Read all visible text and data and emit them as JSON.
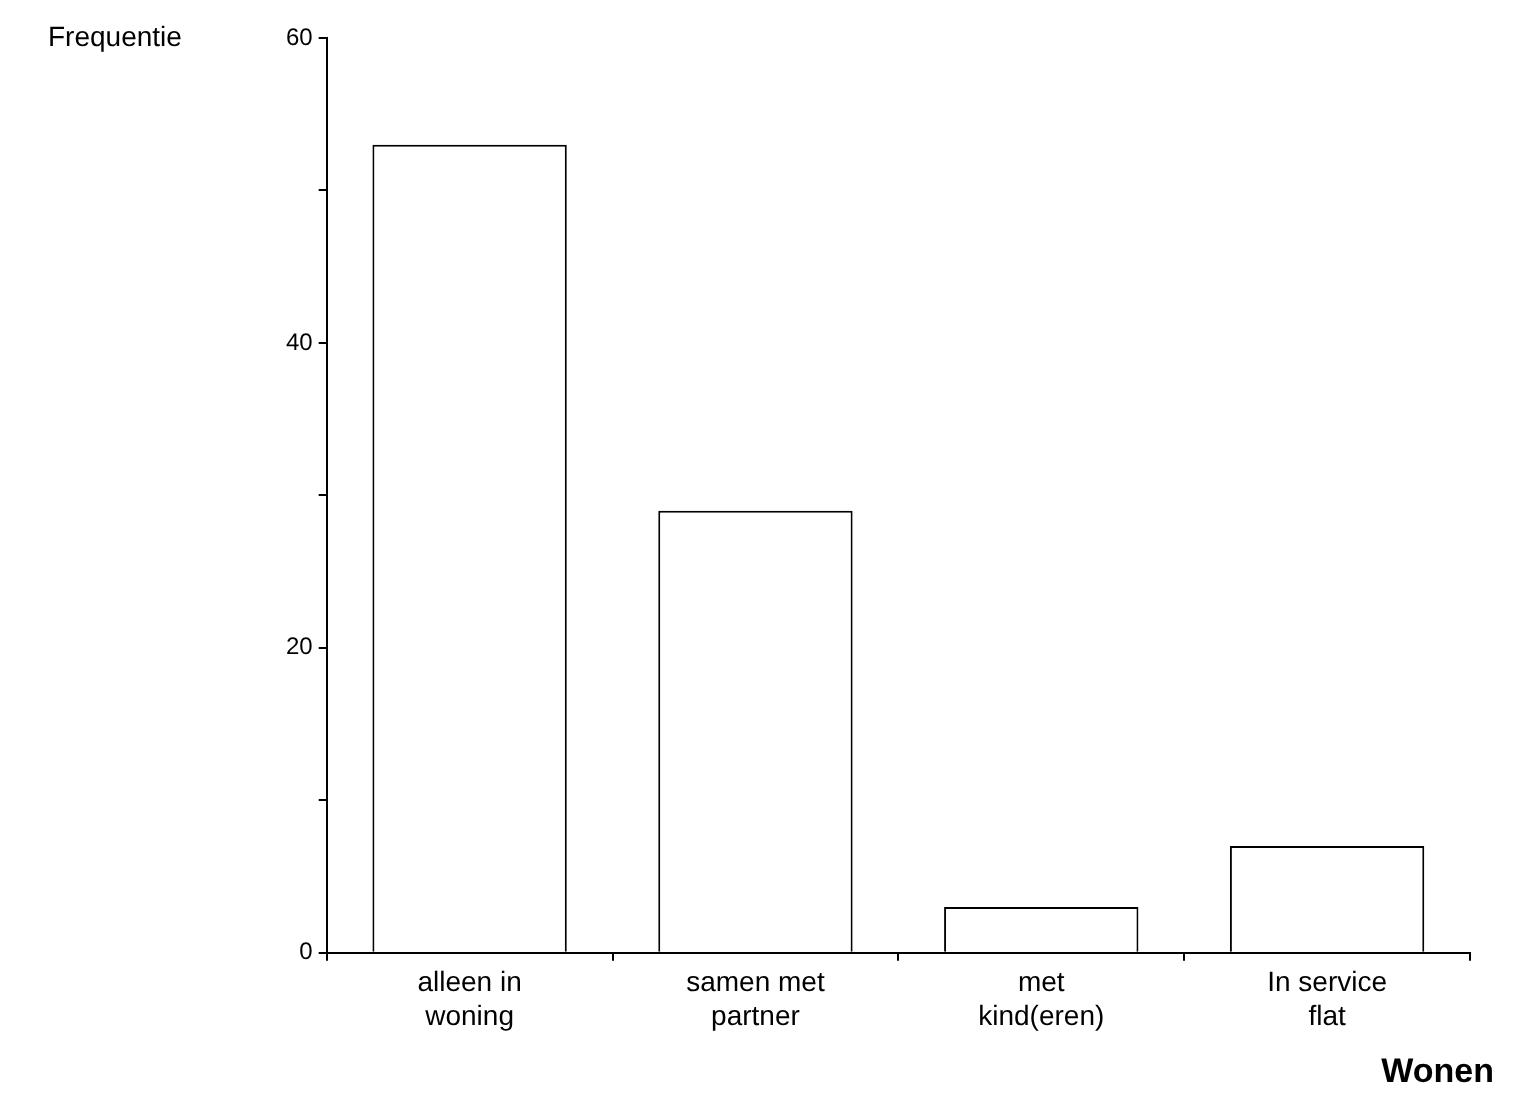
{
  "chart_data": {
    "type": "bar",
    "ylabel": "Frequentie",
    "xlabel": "Wonen",
    "categories": [
      "alleen in woning",
      "samen met partner",
      "met kind(eren)",
      "In service flat"
    ],
    "values": [
      53,
      29,
      3,
      7
    ],
    "color": "#ffffff",
    "ylim": [
      0,
      60
    ],
    "yticks": [
      0,
      {
        "value": 10,
        "label": null
      },
      20,
      {
        "value": 30,
        "label": null
      },
      40,
      {
        "value": 50,
        "label": null
      },
      60
    ],
    "grid": false
  }
}
